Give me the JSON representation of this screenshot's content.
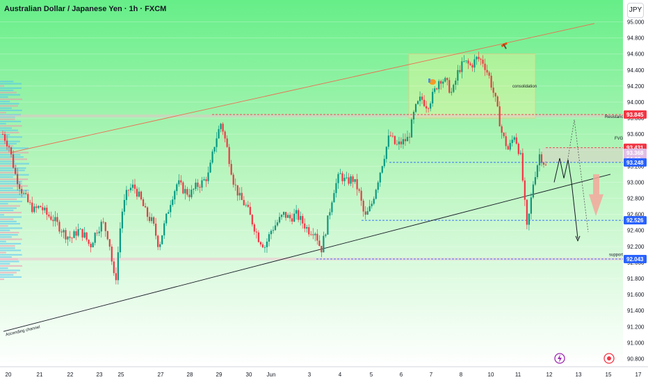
{
  "header": {
    "title": "Australian Dollar / Japanese Yen · 1h · FXCM",
    "currency_button": "JPY"
  },
  "chart_data": {
    "type": "candlestick",
    "symbol": "Australian Dollar / Japanese Yen",
    "interval": "1h",
    "source": "FXCM",
    "ylim": [
      90.7,
      95.1
    ],
    "y_ticks": [
      "95.000",
      "94.800",
      "94.600",
      "94.400",
      "94.200",
      "94.000",
      "93.800",
      "93.600",
      "93.400",
      "93.200",
      "93.000",
      "92.800",
      "92.600",
      "92.400",
      "92.200",
      "92.000",
      "91.800",
      "91.600",
      "91.400",
      "91.200",
      "91.000",
      "90.800"
    ],
    "x_ticks": [
      "20",
      "21",
      "22",
      "23",
      "25",
      "27",
      "28",
      "29",
      "30",
      "Jun",
      "3",
      "4",
      "5",
      "6",
      "7",
      "8",
      "10",
      "11",
      "12",
      "13",
      "15",
      "17"
    ],
    "price_tags": [
      {
        "label": "93.845",
        "value": 93.845,
        "color": "#f23645"
      },
      {
        "label": "93.431",
        "value": 93.431,
        "color": "#f23645"
      },
      {
        "label": "93.368",
        "value": 93.368,
        "color": "#e1bee7",
        "text_color": "#131722"
      },
      {
        "label": "54:09",
        "value": 93.29,
        "color": "#e1bee7",
        "text_color": "#131722"
      },
      {
        "label": "93.248",
        "value": 93.248,
        "color": "#2962ff"
      },
      {
        "label": "92.526",
        "value": 92.526,
        "color": "#2962ff"
      },
      {
        "label": "92.043",
        "value": 92.043,
        "color": "#2962ff"
      }
    ],
    "annotations": [
      {
        "text": "Resistance",
        "value": 93.82
      },
      {
        "text": "FVG",
        "value": 93.55
      },
      {
        "text": "support",
        "value": 92.1
      },
      {
        "text": "consolidation",
        "value": 94.2
      },
      {
        "text": "Ascending channel",
        "value": 91.1
      }
    ],
    "levels": {
      "resistance": 93.845,
      "fvg_top": 93.431,
      "fvg_bottom": 93.248,
      "mid_support": 92.526,
      "support": 92.043,
      "consolidation_top": 94.6,
      "consolidation_bottom": 93.8
    },
    "ascending_channel": {
      "lower": [
        [
          0,
          91.14
        ],
        [
          1,
          93.1
        ]
      ],
      "upper": [
        [
          0,
          93.37
        ],
        [
          1,
          94.98
        ]
      ]
    },
    "series": [
      {
        "name": "AUDJPY",
        "path": [
          [
            0,
            93.6
          ],
          [
            2,
            93.45
          ],
          [
            4,
            93.1
          ],
          [
            6,
            92.9
          ],
          [
            8,
            92.75
          ],
          [
            10,
            92.65
          ],
          [
            12,
            92.7
          ],
          [
            14,
            92.6
          ],
          [
            16,
            92.55
          ],
          [
            18,
            92.45
          ],
          [
            20,
            92.35
          ],
          [
            22,
            92.3
          ],
          [
            24,
            92.4
          ],
          [
            26,
            92.35
          ],
          [
            28,
            92.2
          ],
          [
            30,
            92.4
          ],
          [
            32,
            92.5
          ],
          [
            34,
            92.3
          ],
          [
            36,
            91.7
          ],
          [
            38,
            92.6
          ],
          [
            40,
            92.9
          ],
          [
            42,
            92.95
          ],
          [
            44,
            92.8
          ],
          [
            46,
            92.6
          ],
          [
            48,
            92.5
          ],
          [
            50,
            92.2
          ],
          [
            52,
            92.5
          ],
          [
            54,
            92.8
          ],
          [
            56,
            93.0
          ],
          [
            58,
            92.9
          ],
          [
            60,
            92.85
          ],
          [
            62,
            92.95
          ],
          [
            64,
            93.0
          ],
          [
            66,
            93.1
          ],
          [
            68,
            93.5
          ],
          [
            70,
            93.75
          ],
          [
            72,
            93.4
          ],
          [
            74,
            93.0
          ],
          [
            76,
            92.8
          ],
          [
            78,
            92.7
          ],
          [
            80,
            92.5
          ],
          [
            82,
            92.3
          ],
          [
            84,
            92.2
          ],
          [
            86,
            92.4
          ],
          [
            88,
            92.5
          ],
          [
            90,
            92.6
          ],
          [
            92,
            92.55
          ],
          [
            94,
            92.6
          ],
          [
            96,
            92.5
          ],
          [
            98,
            92.4
          ],
          [
            100,
            92.4
          ],
          [
            102,
            92.15
          ],
          [
            104,
            92.5
          ],
          [
            106,
            92.9
          ],
          [
            108,
            93.1
          ],
          [
            110,
            93.0
          ],
          [
            112,
            93.05
          ],
          [
            114,
            92.9
          ],
          [
            116,
            92.55
          ],
          [
            118,
            92.7
          ],
          [
            120,
            93.0
          ],
          [
            122,
            93.3
          ],
          [
            124,
            93.6
          ],
          [
            126,
            93.45
          ],
          [
            128,
            93.5
          ],
          [
            130,
            93.55
          ],
          [
            132,
            93.9
          ],
          [
            134,
            94.05
          ],
          [
            136,
            93.95
          ],
          [
            138,
            94.1
          ],
          [
            140,
            94.3
          ],
          [
            142,
            94.25
          ],
          [
            144,
            94.1
          ],
          [
            146,
            94.4
          ],
          [
            148,
            94.5
          ],
          [
            150,
            94.45
          ],
          [
            152,
            94.55
          ],
          [
            154,
            94.5
          ],
          [
            156,
            94.3
          ],
          [
            158,
            94.0
          ],
          [
            160,
            93.6
          ],
          [
            162,
            93.4
          ],
          [
            164,
            93.6
          ],
          [
            166,
            93.3
          ],
          [
            168,
            92.4
          ],
          [
            170,
            93.0
          ],
          [
            172,
            93.35
          ],
          [
            174,
            93.2
          ]
        ]
      }
    ]
  }
}
